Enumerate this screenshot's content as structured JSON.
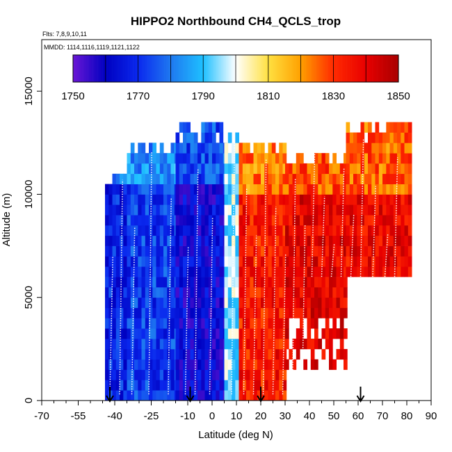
{
  "chart_data": {
    "type": "heatmap",
    "title": "HIPPO2 Northbound CH4_QCLS_trop",
    "flights_label": "Flts: 7,8,9,10,11",
    "dates_label": "MMDD: 1114,1116,1119,1121,1122",
    "xlabel": "Latitude (deg N)",
    "ylabel": "Altitude (m)",
    "xlim": [
      -70,
      90
    ],
    "ylim": [
      0,
      17500
    ],
    "x_ticks": [
      -70,
      -55,
      -40,
      -25,
      -10,
      0,
      10,
      20,
      30,
      40,
      50,
      60,
      70,
      80,
      90
    ],
    "x_tick_labels": [
      "-70",
      "-55",
      "-40",
      "-25",
      "-10",
      "0",
      "10",
      "20",
      "30",
      "40",
      "50",
      "60",
      "70",
      "80",
      "90"
    ],
    "x_minor_ticks": [
      -65,
      -60,
      -50,
      -45,
      -35,
      -30,
      -20,
      -15,
      -5,
      5,
      15,
      25,
      35,
      45,
      55,
      65,
      75,
      85
    ],
    "y_ticks": [
      0,
      5000,
      10000,
      15000
    ],
    "y_tick_labels": [
      "0",
      "5000",
      "10000",
      "15000"
    ],
    "colorbar": {
      "range": [
        1750,
        1850
      ],
      "tick_labels": [
        "1750",
        "1770",
        "1790",
        "1810",
        "1830",
        "1850"
      ],
      "tick_values": [
        1750,
        1770,
        1790,
        1810,
        1830,
        1850
      ],
      "colors": [
        "#6a16d6",
        "#0000c0",
        "#0a28ee",
        "#1e78f0",
        "#1ec0ff",
        "#ffffff",
        "#ffe040",
        "#ffa000",
        "#ff2a00",
        "#e80000",
        "#a80000"
      ]
    },
    "arrow_latitudes": [
      -42,
      -9,
      20,
      61
    ],
    "flight_track_latitudes": [
      -42,
      -38,
      -33,
      -26,
      -18,
      -11,
      -7,
      -1,
      8,
      13,
      17,
      21,
      25,
      29,
      33,
      37,
      41,
      45,
      49,
      53,
      57,
      61,
      66,
      71,
      75
    ],
    "latitude_bands": [
      {
        "lat_min": -44,
        "lat_max": -35,
        "alt_min": 0,
        "alt_max": 11000,
        "ch4_mean": 1768
      },
      {
        "lat_min": -35,
        "lat_max": -15,
        "alt_min": 0,
        "alt_max": 12500,
        "ch4_mean": 1772
      },
      {
        "lat_min": -15,
        "lat_max": 5,
        "alt_min": 0,
        "alt_max": 13300,
        "ch4_mean": 1762
      },
      {
        "lat_min": 5,
        "lat_max": 11,
        "alt_min": 0,
        "alt_max": 13000,
        "ch4_mean": 1795
      },
      {
        "lat_min": 11,
        "lat_max": 30,
        "alt_min": 0,
        "alt_max": 12500,
        "ch4_mean": 1835
      },
      {
        "lat_min": 30,
        "lat_max": 55,
        "alt_min": 1500,
        "alt_max": 12000,
        "ch4_mean": 1840
      },
      {
        "lat_min": 55,
        "lat_max": 82,
        "alt_min": 6000,
        "alt_max": 13500,
        "ch4_mean": 1838
      }
    ]
  }
}
